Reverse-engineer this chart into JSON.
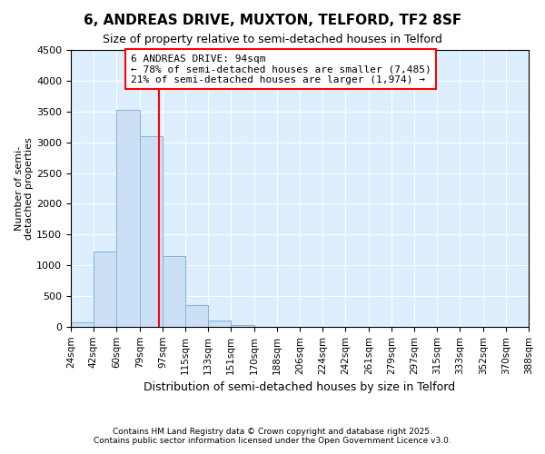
{
  "title": "6, ANDREAS DRIVE, MUXTON, TELFORD, TF2 8SF",
  "subtitle": "Size of property relative to semi-detached houses in Telford",
  "xlabel": "Distribution of semi-detached houses by size in Telford",
  "ylabel": "Number of semi-\ndetached properties",
  "bar_color": "#cce0f5",
  "bar_edge_color": "#7fb3d9",
  "annotation_line_color": "red",
  "property_size": 94,
  "annotation_title": "6 ANDREAS DRIVE: 94sqm",
  "annotation_line1": "← 78% of semi-detached houses are smaller (7,485)",
  "annotation_line2": "21% of semi-detached houses are larger (1,974) →",
  "bins": [
    24,
    42,
    60,
    79,
    97,
    115,
    133,
    151,
    170,
    188,
    206,
    224,
    242,
    261,
    279,
    297,
    315,
    333,
    352,
    370,
    388
  ],
  "bar_heights": [
    80,
    1230,
    3520,
    3100,
    1150,
    350,
    100,
    30,
    5,
    2,
    1,
    1,
    0,
    0,
    0,
    0,
    0,
    0,
    0,
    0
  ],
  "ylim": [
    0,
    4500
  ],
  "yticks": [
    0,
    500,
    1000,
    1500,
    2000,
    2500,
    3000,
    3500,
    4000,
    4500
  ],
  "background_color": "#ddeeff",
  "footer_line1": "Contains HM Land Registry data © Crown copyright and database right 2025.",
  "footer_line2": "Contains public sector information licensed under the Open Government Licence v3.0."
}
